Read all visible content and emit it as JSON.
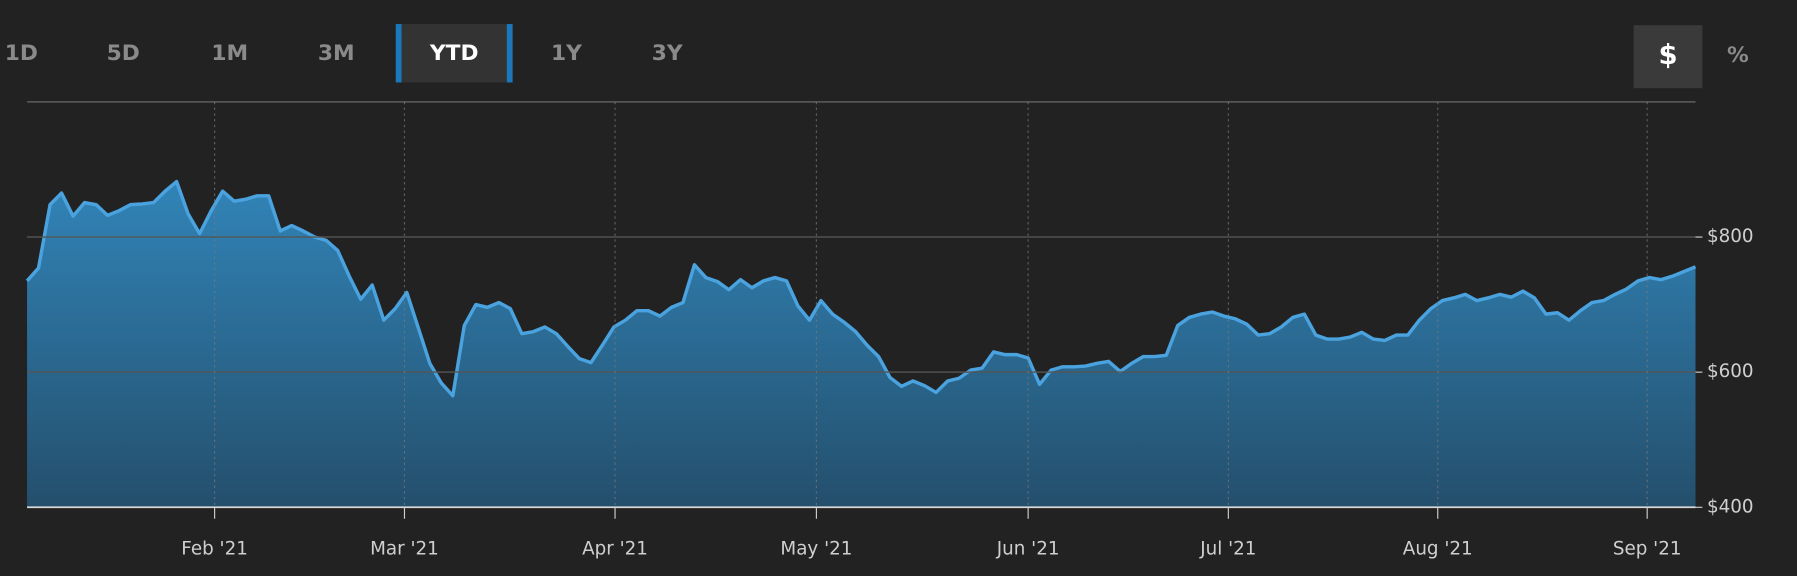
{
  "toolbar": {
    "ranges": [
      {
        "label": "1D",
        "selected": false
      },
      {
        "label": "5D",
        "selected": false
      },
      {
        "label": "1M",
        "selected": false
      },
      {
        "label": "3M",
        "selected": false
      },
      {
        "label": "YTD",
        "selected": true
      },
      {
        "label": "1Y",
        "selected": false
      },
      {
        "label": "3Y",
        "selected": false
      }
    ],
    "units": [
      {
        "label": "$",
        "selected": true
      },
      {
        "label": "%",
        "selected": false
      }
    ]
  },
  "chart_data": {
    "type": "area",
    "color": "#4aa3df",
    "values": [
      735,
      754,
      848,
      865,
      831,
      851,
      848,
      832,
      839,
      848,
      849,
      851,
      868,
      882,
      834,
      805,
      839,
      868,
      853,
      856,
      861,
      861,
      809,
      817,
      809,
      800,
      795,
      780,
      742,
      708,
      729,
      677,
      694,
      718,
      666,
      613,
      584,
      565,
      669,
      700,
      696,
      703,
      694,
      657,
      660,
      667,
      657,
      638,
      620,
      614,
      640,
      667,
      677,
      691,
      691,
      683,
      696,
      703,
      759,
      740,
      734,
      722,
      737,
      725,
      735,
      740,
      735,
      698,
      677,
      706,
      686,
      674,
      660,
      640,
      623,
      592,
      579,
      587,
      580,
      570,
      587,
      591,
      603,
      606,
      630,
      626,
      626,
      621,
      582,
      603,
      608,
      608,
      609,
      613,
      616,
      601,
      613,
      623,
      623,
      625,
      669,
      681,
      686,
      689,
      683,
      679,
      671,
      655,
      657,
      667,
      681,
      686,
      655,
      649,
      649,
      652,
      659,
      649,
      647,
      655,
      655,
      677,
      694,
      706,
      710,
      715,
      706,
      710,
      715,
      711,
      720,
      710,
      686,
      688,
      677,
      691,
      703,
      706,
      715,
      723,
      735,
      740,
      737,
      742,
      749,
      756
    ],
    "xlim": [
      0,
      145
    ],
    "xticks": [
      {
        "value": 16.3,
        "label": "Feb '21"
      },
      {
        "value": 32.8,
        "label": "Mar '21"
      },
      {
        "value": 51.1,
        "label": "Apr '21"
      },
      {
        "value": 68.6,
        "label": "May '21"
      },
      {
        "value": 87,
        "label": "Jun '21"
      },
      {
        "value": 104.4,
        "label": "Jul '21"
      },
      {
        "value": 122.6,
        "label": "Aug '21"
      },
      {
        "value": 140.8,
        "label": "Sep '21"
      }
    ],
    "ylim": [
      400,
      1000
    ],
    "yticks": [
      {
        "value": 400,
        "label": "$400"
      },
      {
        "value": 600,
        "label": "$600"
      },
      {
        "value": 800,
        "label": "$800"
      }
    ],
    "grid": true
  }
}
